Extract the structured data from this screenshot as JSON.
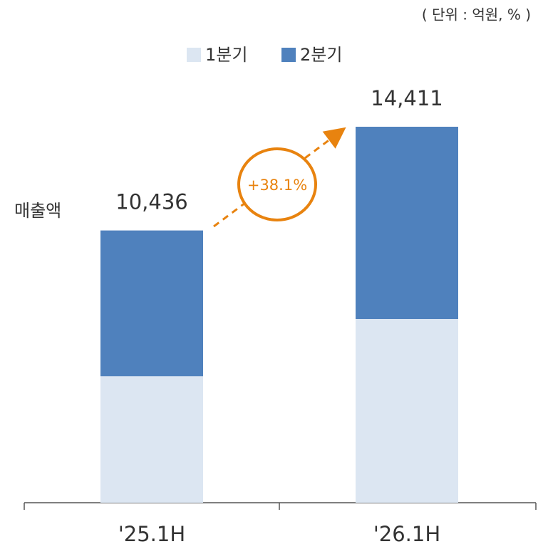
{
  "unit_note": "( 단위 : 억원, % )",
  "y_label": "매출액",
  "annotation": "+38.1%",
  "chart_data": {
    "type": "stacked_bar",
    "categories": [
      "'25.1H",
      "'26.1H"
    ],
    "series": [
      {
        "name": "1분기",
        "color": "#dce6f2",
        "values": [
          4850,
          7042
        ]
      },
      {
        "name": "2분기",
        "color": "#4f81bd",
        "values": [
          5586,
          7369
        ]
      }
    ],
    "totals": [
      10436,
      14411
    ],
    "total_labels": [
      "10,436",
      "14,411"
    ]
  }
}
